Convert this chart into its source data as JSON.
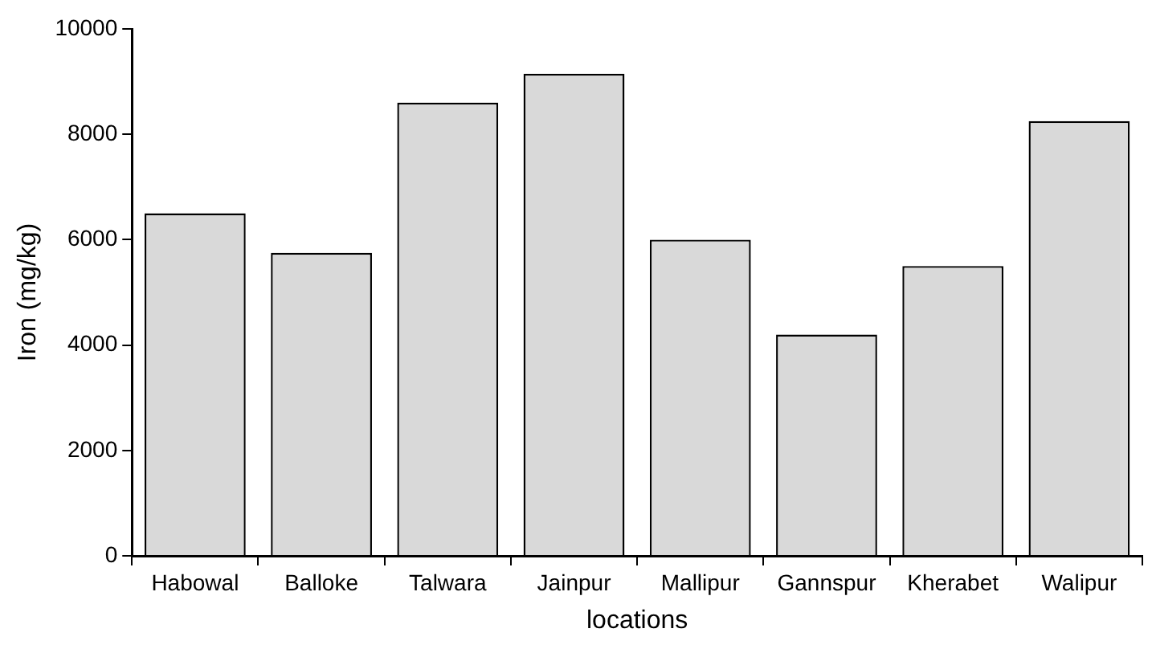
{
  "chart_data": {
    "type": "bar",
    "xlabel": "locations",
    "ylabel": "Iron (mg/kg)",
    "categories": [
      "Habowal",
      "Balloke",
      "Talwara",
      "Jainpur",
      "Mallipur",
      "Gannspur",
      "Kherabet",
      "Walipur"
    ],
    "values": [
      6500,
      5750,
      8600,
      9150,
      6000,
      4200,
      5500,
      8250
    ],
    "color": "#d9d9d9",
    "ylim": [
      0,
      10000
    ],
    "yticks": [
      0,
      2000,
      4000,
      6000,
      8000,
      10000
    ],
    "grid": false,
    "legend": false
  }
}
